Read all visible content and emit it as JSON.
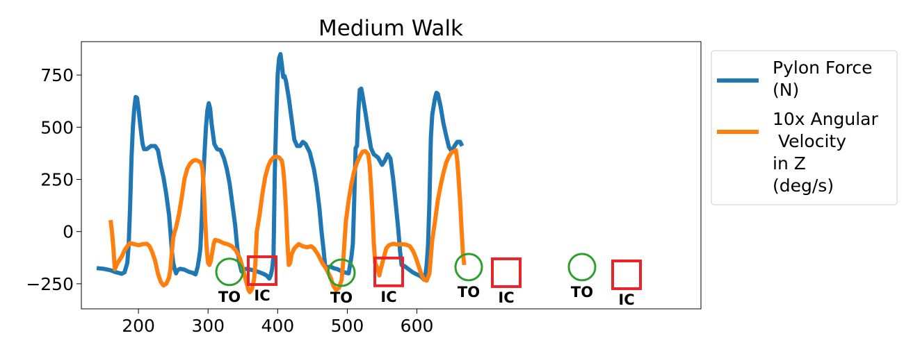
{
  "chart_data": {
    "type": "line",
    "title": "Medium Walk",
    "xlabel": "",
    "ylabel": "",
    "xlim": [
      118,
      1008
    ],
    "ylim": [
      -370,
      910
    ],
    "xticks": [
      200,
      300,
      400,
      500,
      600
    ],
    "yticks": [
      -250,
      0,
      250,
      500,
      750
    ],
    "ytick_labels": [
      "−250",
      "0",
      "250",
      "500",
      "750"
    ],
    "grid": false,
    "legend_position": "outside-right",
    "series": [
      {
        "name": "Pylon Force\n(N)",
        "color": "#1f77b4",
        "points": [
          [
            140,
            -175
          ],
          [
            150,
            -178
          ],
          [
            160,
            -185
          ],
          [
            168,
            -195
          ],
          [
            176,
            -202
          ],
          [
            180,
            -195
          ],
          [
            184,
            -150
          ],
          [
            186,
            -60
          ],
          [
            188,
            120
          ],
          [
            190,
            350
          ],
          [
            192,
            500
          ],
          [
            194,
            590
          ],
          [
            196,
            645
          ],
          [
            198,
            640
          ],
          [
            200,
            590
          ],
          [
            202,
            530
          ],
          [
            204,
            470
          ],
          [
            206,
            420
          ],
          [
            208,
            395
          ],
          [
            212,
            395
          ],
          [
            218,
            410
          ],
          [
            224,
            410
          ],
          [
            228,
            390
          ],
          [
            232,
            320
          ],
          [
            236,
            260
          ],
          [
            240,
            180
          ],
          [
            244,
            80
          ],
          [
            246,
            0
          ],
          [
            248,
            -90
          ],
          [
            250,
            -150
          ],
          [
            252,
            -180
          ],
          [
            254,
            -200
          ],
          [
            256,
            -185
          ],
          [
            260,
            -178
          ],
          [
            266,
            -182
          ],
          [
            272,
            -192
          ],
          [
            278,
            -198
          ],
          [
            282,
            -205
          ],
          [
            285,
            -170
          ],
          [
            287,
            -130
          ],
          [
            289,
            -80
          ],
          [
            291,
            60
          ],
          [
            293,
            250
          ],
          [
            295,
            380
          ],
          [
            297,
            500
          ],
          [
            299,
            580
          ],
          [
            301,
            615
          ],
          [
            303,
            590
          ],
          [
            305,
            520
          ],
          [
            307,
            470
          ],
          [
            309,
            420
          ],
          [
            313,
            395
          ],
          [
            318,
            390
          ],
          [
            323,
            350
          ],
          [
            327,
            300
          ],
          [
            331,
            230
          ],
          [
            335,
            130
          ],
          [
            339,
            30
          ],
          [
            342,
            -80
          ],
          [
            345,
            -150
          ],
          [
            348,
            -190
          ],
          [
            350,
            -195
          ],
          [
            352,
            -180
          ],
          [
            356,
            -178
          ],
          [
            362,
            -183
          ],
          [
            368,
            -188
          ],
          [
            374,
            -195
          ],
          [
            380,
            -203
          ],
          [
            384,
            -210
          ],
          [
            388,
            -225
          ],
          [
            390,
            -210
          ],
          [
            392,
            -180
          ],
          [
            394,
            -120
          ],
          [
            396,
            300
          ],
          [
            398,
            550
          ],
          [
            400,
            750
          ],
          [
            402,
            830
          ],
          [
            404,
            850
          ],
          [
            406,
            800
          ],
          [
            408,
            740
          ],
          [
            410,
            745
          ],
          [
            412,
            720
          ],
          [
            416,
            640
          ],
          [
            420,
            540
          ],
          [
            424,
            440
          ],
          [
            428,
            410
          ],
          [
            432,
            410
          ],
          [
            436,
            430
          ],
          [
            440,
            420
          ],
          [
            446,
            380
          ],
          [
            452,
            300
          ],
          [
            456,
            220
          ],
          [
            460,
            110
          ],
          [
            463,
            0
          ],
          [
            466,
            -90
          ],
          [
            468,
            -160
          ],
          [
            470,
            -180
          ],
          [
            472,
            -170
          ],
          [
            476,
            -168
          ],
          [
            480,
            -175
          ],
          [
            486,
            -180
          ],
          [
            492,
            -190
          ],
          [
            498,
            -197
          ],
          [
            502,
            -200
          ],
          [
            504,
            -160
          ],
          [
            506,
            -120
          ],
          [
            508,
            -60
          ],
          [
            510,
            150
          ],
          [
            512,
            400
          ],
          [
            514,
            410
          ],
          [
            516,
            580
          ],
          [
            518,
            680
          ],
          [
            520,
            685
          ],
          [
            522,
            650
          ],
          [
            526,
            570
          ],
          [
            530,
            480
          ],
          [
            534,
            400
          ],
          [
            538,
            370
          ],
          [
            544,
            355
          ],
          [
            550,
            320
          ],
          [
            554,
            340
          ],
          [
            558,
            370
          ],
          [
            562,
            350
          ],
          [
            566,
            250
          ],
          [
            570,
            120
          ],
          [
            573,
            20
          ],
          [
            576,
            -100
          ],
          [
            578,
            -160
          ],
          [
            580,
            -165
          ],
          [
            582,
            -165
          ],
          [
            588,
            -180
          ],
          [
            594,
            -195
          ],
          [
            600,
            -205
          ],
          [
            606,
            -215
          ],
          [
            610,
            -230
          ],
          [
            612,
            -210
          ],
          [
            614,
            -160
          ],
          [
            616,
            -60
          ],
          [
            618,
            150
          ],
          [
            620,
            450
          ],
          [
            622,
            560
          ],
          [
            624,
            600
          ],
          [
            626,
            640
          ],
          [
            628,
            665
          ],
          [
            630,
            660
          ],
          [
            634,
            600
          ],
          [
            638,
            520
          ],
          [
            642,
            460
          ],
          [
            646,
            405
          ],
          [
            650,
            385
          ],
          [
            654,
            410
          ],
          [
            658,
            430
          ],
          [
            662,
            430
          ],
          [
            665,
            410
          ]
        ]
      },
      {
        "name": "10x Angular\n Velocity\nin Z\n(deg/s)",
        "color": "#ff7f0e",
        "points": [
          [
            160,
            55
          ],
          [
            162,
            0
          ],
          [
            164,
            -80
          ],
          [
            166,
            -180
          ],
          [
            168,
            -165
          ],
          [
            170,
            -150
          ],
          [
            172,
            -140
          ],
          [
            176,
            -120
          ],
          [
            180,
            -90
          ],
          [
            184,
            -70
          ],
          [
            188,
            -55
          ],
          [
            194,
            -60
          ],
          [
            200,
            -65
          ],
          [
            206,
            -60
          ],
          [
            212,
            -58
          ],
          [
            216,
            -70
          ],
          [
            220,
            -100
          ],
          [
            224,
            -140
          ],
          [
            228,
            -200
          ],
          [
            232,
            -240
          ],
          [
            236,
            -258
          ],
          [
            240,
            -250
          ],
          [
            244,
            -220
          ],
          [
            246,
            -180
          ],
          [
            248,
            -100
          ],
          [
            250,
            -30
          ],
          [
            252,
            0
          ],
          [
            254,
            20
          ],
          [
            258,
            80
          ],
          [
            262,
            160
          ],
          [
            266,
            250
          ],
          [
            270,
            300
          ],
          [
            274,
            325
          ],
          [
            278,
            338
          ],
          [
            282,
            343
          ],
          [
            286,
            338
          ],
          [
            290,
            330
          ],
          [
            292,
            300
          ],
          [
            294,
            200
          ],
          [
            296,
            50
          ],
          [
            298,
            -80
          ],
          [
            300,
            -150
          ],
          [
            302,
            -160
          ],
          [
            304,
            -140
          ],
          [
            306,
            -100
          ],
          [
            308,
            -60
          ],
          [
            310,
            -40
          ],
          [
            316,
            -45
          ],
          [
            322,
            -55
          ],
          [
            328,
            -60
          ],
          [
            334,
            -70
          ],
          [
            340,
            -90
          ],
          [
            346,
            -130
          ],
          [
            350,
            -180
          ],
          [
            354,
            -230
          ],
          [
            358,
            -280
          ],
          [
            360,
            -290
          ],
          [
            363,
            -275
          ],
          [
            366,
            -230
          ],
          [
            368,
            -150
          ],
          [
            370,
            0
          ],
          [
            374,
            80
          ],
          [
            378,
            180
          ],
          [
            382,
            260
          ],
          [
            386,
            310
          ],
          [
            390,
            340
          ],
          [
            394,
            355
          ],
          [
            398,
            360
          ],
          [
            402,
            355
          ],
          [
            406,
            340
          ],
          [
            408,
            300
          ],
          [
            410,
            220
          ],
          [
            412,
            100
          ],
          [
            414,
            -50
          ],
          [
            416,
            -160
          ],
          [
            418,
            -150
          ],
          [
            420,
            -110
          ],
          [
            424,
            -80
          ],
          [
            430,
            -60
          ],
          [
            436,
            -70
          ],
          [
            442,
            -75
          ],
          [
            448,
            -70
          ],
          [
            452,
            -80
          ],
          [
            458,
            -110
          ],
          [
            464,
            -150
          ],
          [
            470,
            -180
          ],
          [
            476,
            -220
          ],
          [
            480,
            -260
          ],
          [
            484,
            -280
          ],
          [
            488,
            -270
          ],
          [
            492,
            -230
          ],
          [
            494,
            -150
          ],
          [
            496,
            -50
          ],
          [
            498,
            50
          ],
          [
            502,
            150
          ],
          [
            506,
            230
          ],
          [
            510,
            290
          ],
          [
            514,
            330
          ],
          [
            518,
            360
          ],
          [
            522,
            383
          ],
          [
            526,
            385
          ],
          [
            530,
            370
          ],
          [
            532,
            320
          ],
          [
            534,
            220
          ],
          [
            536,
            100
          ],
          [
            538,
            -50
          ],
          [
            540,
            -150
          ],
          [
            544,
            -180
          ],
          [
            546,
            -210
          ],
          [
            548,
            -180
          ],
          [
            552,
            -130
          ],
          [
            556,
            -80
          ],
          [
            560,
            -65
          ],
          [
            566,
            -58
          ],
          [
            572,
            -62
          ],
          [
            578,
            -60
          ],
          [
            584,
            -62
          ],
          [
            590,
            -70
          ],
          [
            594,
            -90
          ],
          [
            598,
            -120
          ],
          [
            602,
            -160
          ],
          [
            606,
            -200
          ],
          [
            610,
            -230
          ],
          [
            614,
            -235
          ],
          [
            618,
            -200
          ],
          [
            620,
            -120
          ],
          [
            622,
            -40
          ],
          [
            626,
            50
          ],
          [
            630,
            150
          ],
          [
            634,
            220
          ],
          [
            638,
            280
          ],
          [
            642,
            330
          ],
          [
            646,
            360
          ],
          [
            650,
            380
          ],
          [
            654,
            385
          ],
          [
            656,
            390
          ],
          [
            658,
            340
          ],
          [
            660,
            250
          ],
          [
            662,
            150
          ],
          [
            664,
            20
          ],
          [
            666,
            -100
          ],
          [
            668,
            -160
          ]
        ]
      }
    ],
    "annotations": [
      {
        "type": "circle",
        "label": "TO",
        "color": "#2ca02c",
        "x": 330,
        "y": -193
      },
      {
        "type": "square",
        "label": "IC",
        "color": "#e8232a",
        "x": 377,
        "y": -187
      },
      {
        "type": "circle",
        "label": "TO",
        "color": "#2ca02c",
        "x": 491,
        "y": -197
      },
      {
        "type": "square",
        "label": "IC",
        "color": "#e8232a",
        "x": 559,
        "y": -193
      },
      {
        "type": "circle",
        "label": "TO",
        "color": "#2ca02c",
        "x": 674,
        "y": -170
      },
      {
        "type": "square",
        "label": "IC",
        "color": "#e8232a",
        "x": 728,
        "y": -197
      },
      {
        "type": "circle",
        "label": "TO",
        "color": "#2ca02c",
        "x": 837,
        "y": -170
      },
      {
        "type": "square",
        "label": "IC",
        "color": "#e8232a",
        "x": 901,
        "y": -207
      }
    ]
  }
}
